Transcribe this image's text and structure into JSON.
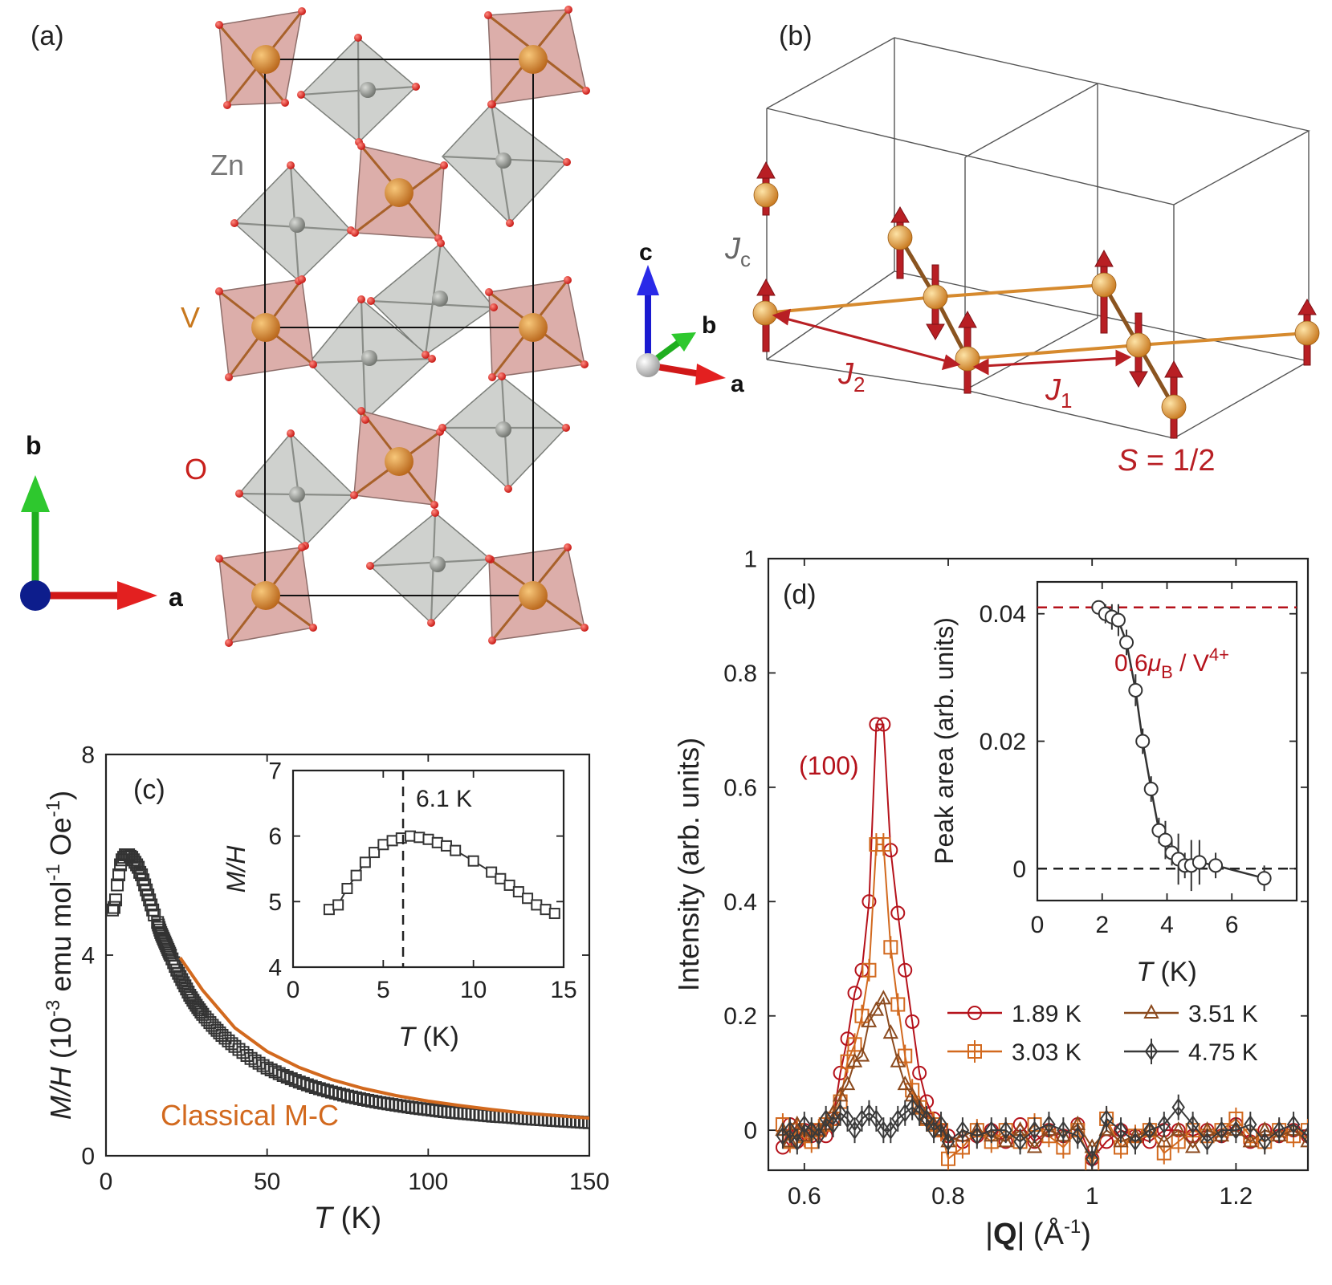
{
  "panel_a": {
    "label": "(a)",
    "atoms": {
      "zn": "Zn",
      "v": "V",
      "o": "O"
    },
    "axes": {
      "b": "b",
      "a": "a"
    },
    "colors": {
      "v_octa": "#d9a7a3",
      "zn_octa": "#c7c9c5",
      "v_atom": "#c8781e",
      "zn_atom": "#8a8d88",
      "o_atom": "#e3201b"
    }
  },
  "panel_b": {
    "label": "(b)",
    "axes": {
      "c": "c",
      "b": "b",
      "a": "a"
    },
    "jc_main": "J",
    "jc_sub": "c",
    "j1_main": "J",
    "j1_sub": "1",
    "j2_main": "J",
    "j2_sub": "2",
    "spin_label_s": "S",
    "spin_label_rest": " = 1/2",
    "colors": {
      "spin": "#b81f24",
      "bond": "#d68a2e",
      "atom": "#d98a1c",
      "cell": "#555555"
    }
  },
  "chart_data": [
    {
      "id": "c-main",
      "type": "scatter",
      "panel_label": "(c)",
      "xlabel_italic": "T",
      "xlabel_rest": " (K)",
      "ylabel": "M/H (10^-3 emu mol^-1 Oe^-1)",
      "ylabel_parts": {
        "mh": "M/H",
        "a": " (10",
        "e1": "-3",
        "b": " emu mol",
        "e2": "-1",
        "c": " Oe",
        "e3": "-1",
        "d": ")"
      },
      "xlim": [
        0,
        150
      ],
      "ylim": [
        0,
        8
      ],
      "xticks": [
        "0",
        "50",
        "100",
        "150"
      ],
      "yticks": [
        "0",
        "4",
        "8"
      ],
      "fit_label": "Classical M-C",
      "fit_color": "#d2691e",
      "data_color": "#333333",
      "fit_x": [
        23,
        30,
        40,
        50,
        60,
        70,
        80,
        90,
        100,
        110,
        120,
        130,
        140,
        150
      ],
      "fit_y": [
        3.95,
        3.3,
        2.55,
        2.08,
        1.76,
        1.52,
        1.34,
        1.2,
        1.09,
        1.0,
        0.92,
        0.85,
        0.8,
        0.75
      ],
      "points_x": [
        2,
        2.5,
        3,
        3.5,
        4,
        4.5,
        5,
        5.5,
        6,
        6.5,
        7,
        7.5,
        8,
        8.5,
        9,
        9.5,
        10,
        10.5,
        11,
        11.5,
        12,
        12.5,
        13,
        13.5,
        14,
        14.5,
        15,
        16,
        17,
        18,
        19,
        20,
        22,
        24,
        26,
        28,
        30,
        33,
        36,
        40,
        45,
        50,
        55,
        60,
        65,
        70,
        75,
        80,
        85,
        90,
        95,
        100,
        105,
        110,
        115,
        120,
        125,
        130,
        135,
        140,
        145,
        150
      ],
      "points_y": [
        4.9,
        4.95,
        5.1,
        5.4,
        5.6,
        5.8,
        5.9,
        5.95,
        6.0,
        6.0,
        6.0,
        5.97,
        5.95,
        5.9,
        5.85,
        5.8,
        5.75,
        5.65,
        5.6,
        5.5,
        5.4,
        5.3,
        5.2,
        5.1,
        5.0,
        4.9,
        4.8,
        4.65,
        4.45,
        4.3,
        4.15,
        4.0,
        3.7,
        3.45,
        3.2,
        3.0,
        2.82,
        2.6,
        2.4,
        2.18,
        1.94,
        1.75,
        1.6,
        1.47,
        1.36,
        1.27,
        1.19,
        1.12,
        1.06,
        1.01,
        0.96,
        0.92,
        0.88,
        0.85,
        0.82,
        0.79,
        0.77,
        0.74,
        0.72,
        0.7,
        0.68,
        0.66
      ]
    },
    {
      "id": "c-inset",
      "type": "line",
      "xlabel_italic": "T",
      "xlabel_rest": " (K)",
      "ylabel": "M/H",
      "xlim": [
        0,
        15
      ],
      "ylim": [
        4,
        7
      ],
      "xticks": [
        "0",
        "5",
        "10",
        "15"
      ],
      "yticks": [
        "4",
        "5",
        "6",
        "7"
      ],
      "vline_x": 6.1,
      "vline_label": "6.1 K",
      "x": [
        2,
        2.5,
        3,
        3.5,
        4,
        4.5,
        5,
        5.5,
        6,
        6.5,
        7,
        7.5,
        8,
        8.5,
        9,
        10,
        11,
        11.5,
        12,
        12.5,
        13,
        13.5,
        14,
        14.5
      ],
      "y": [
        4.88,
        4.95,
        5.2,
        5.4,
        5.6,
        5.75,
        5.87,
        5.93,
        5.97,
        6.0,
        5.98,
        5.95,
        5.9,
        5.85,
        5.78,
        5.62,
        5.45,
        5.35,
        5.25,
        5.15,
        5.05,
        4.95,
        4.88,
        4.82
      ]
    },
    {
      "id": "d-main",
      "type": "line",
      "panel_label": "(d)",
      "xlabel": "|Q| (Å^-1)",
      "xlabel_parts": {
        "bar1": "|",
        "q": "Q",
        "bar2": "|",
        "a": " (Å",
        "e": "-1",
        "b": ")"
      },
      "ylabel": "Intensity (arb. units)",
      "xlim": [
        0.55,
        1.3
      ],
      "ylim": [
        -0.07,
        1
      ],
      "xticks": [
        "0.6",
        "0.8",
        "1",
        "1.2"
      ],
      "yticks": [
        "0",
        "0.2",
        "0.4",
        "0.6",
        "0.8",
        "1"
      ],
      "peak_label": "(100)",
      "series": [
        {
          "name": "1.89 K",
          "color": "#b5121b",
          "marker": "circle",
          "x": [
            0.57,
            0.58,
            0.59,
            0.6,
            0.61,
            0.62,
            0.63,
            0.64,
            0.65,
            0.66,
            0.67,
            0.68,
            0.69,
            0.7,
            0.71,
            0.72,
            0.73,
            0.74,
            0.75,
            0.76,
            0.77,
            0.78,
            0.79,
            0.8,
            0.82,
            0.84,
            0.86,
            0.88,
            0.9,
            0.92,
            0.94,
            0.96,
            0.98,
            1.0,
            1.02,
            1.04,
            1.06,
            1.08,
            1.1,
            1.12,
            1.14,
            1.16,
            1.18,
            1.2,
            1.22,
            1.24,
            1.26,
            1.28,
            1.3
          ],
          "y": [
            -0.03,
            0.01,
            -0.02,
            0.0,
            -0.01,
            0.0,
            -0.01,
            0.02,
            0.1,
            0.16,
            0.24,
            0.28,
            0.4,
            0.71,
            0.71,
            0.49,
            0.38,
            0.28,
            0.19,
            0.1,
            0.05,
            0.02,
            0.0,
            -0.01,
            -0.02,
            -0.01,
            0.0,
            -0.02,
            0.01,
            -0.02,
            0.0,
            -0.01,
            0.01,
            -0.05,
            -0.02,
            0.0,
            -0.01,
            -0.02,
            0.0,
            0.0,
            -0.01,
            0.0,
            -0.01,
            0.01,
            -0.02,
            0.0,
            -0.01,
            0.0,
            -0.01
          ]
        },
        {
          "name": "3.03 K",
          "color": "#d2691e",
          "marker": "square-plus",
          "x": [
            0.57,
            0.58,
            0.59,
            0.6,
            0.61,
            0.62,
            0.63,
            0.64,
            0.65,
            0.66,
            0.67,
            0.68,
            0.69,
            0.7,
            0.71,
            0.72,
            0.73,
            0.74,
            0.75,
            0.76,
            0.77,
            0.78,
            0.79,
            0.8,
            0.82,
            0.84,
            0.86,
            0.88,
            0.9,
            0.92,
            0.94,
            0.96,
            0.98,
            1.0,
            1.02,
            1.04,
            1.06,
            1.08,
            1.1,
            1.12,
            1.14,
            1.16,
            1.18,
            1.2,
            1.22,
            1.24,
            1.26,
            1.28,
            1.3
          ],
          "y": [
            0.01,
            -0.02,
            0.0,
            -0.01,
            -0.02,
            0.0,
            0.01,
            0.02,
            0.05,
            0.12,
            0.15,
            0.2,
            0.28,
            0.5,
            0.5,
            0.32,
            0.22,
            0.13,
            0.07,
            0.04,
            0.02,
            0.01,
            0.0,
            -0.05,
            -0.03,
            0.0,
            -0.02,
            0.0,
            -0.02,
            0.01,
            -0.01,
            -0.03,
            0.0,
            -0.06,
            0.02,
            -0.03,
            -0.01,
            0.0,
            -0.04,
            -0.02,
            0.0,
            -0.01,
            0.0,
            0.02,
            -0.01,
            -0.02,
            0.0,
            -0.01,
            0.0
          ]
        },
        {
          "name": "3.51 K",
          "color": "#8b4a1e",
          "marker": "triangle",
          "x": [
            0.57,
            0.58,
            0.59,
            0.6,
            0.61,
            0.62,
            0.63,
            0.64,
            0.65,
            0.66,
            0.67,
            0.68,
            0.69,
            0.7,
            0.71,
            0.72,
            0.73,
            0.74,
            0.75,
            0.76,
            0.77,
            0.78,
            0.79,
            0.8,
            0.82,
            0.84,
            0.86,
            0.88,
            0.9,
            0.92,
            0.94,
            0.96,
            0.98,
            1.0,
            1.02,
            1.04,
            1.06,
            1.08,
            1.1,
            1.12,
            1.14,
            1.16,
            1.18,
            1.2,
            1.22,
            1.24,
            1.26,
            1.28,
            1.3
          ],
          "y": [
            0.0,
            -0.02,
            0.01,
            -0.01,
            0.0,
            0.0,
            0.01,
            0.03,
            0.06,
            0.08,
            0.12,
            0.13,
            0.19,
            0.21,
            0.23,
            0.17,
            0.12,
            0.08,
            0.06,
            0.04,
            0.02,
            0.01,
            0.0,
            -0.02,
            -0.01,
            0.0,
            -0.01,
            -0.02,
            0.0,
            -0.03,
            0.0,
            -0.01,
            0.01,
            -0.03,
            0.0,
            -0.02,
            -0.01,
            0.0,
            -0.02,
            0.0,
            -0.03,
            0.0,
            -0.01,
            0.0,
            -0.02,
            0.0,
            -0.01,
            0.0,
            -0.02
          ]
        },
        {
          "name": "4.75 K",
          "color": "#3a3a3a",
          "marker": "diamond",
          "x": [
            0.57,
            0.58,
            0.59,
            0.6,
            0.61,
            0.62,
            0.63,
            0.64,
            0.65,
            0.66,
            0.67,
            0.68,
            0.69,
            0.7,
            0.71,
            0.72,
            0.73,
            0.74,
            0.75,
            0.76,
            0.77,
            0.78,
            0.79,
            0.8,
            0.82,
            0.84,
            0.86,
            0.88,
            0.9,
            0.92,
            0.94,
            0.96,
            0.98,
            1.0,
            1.02,
            1.04,
            1.06,
            1.08,
            1.1,
            1.12,
            1.14,
            1.16,
            1.18,
            1.2,
            1.22,
            1.24,
            1.26,
            1.28,
            1.3
          ],
          "y": [
            -0.01,
            0.0,
            -0.02,
            0.01,
            0.0,
            -0.01,
            0.02,
            0.01,
            0.03,
            0.02,
            0.0,
            0.02,
            0.03,
            0.02,
            0.0,
            0.0,
            0.02,
            0.03,
            0.04,
            0.03,
            0.02,
            0.0,
            0.01,
            -0.02,
            0.0,
            -0.01,
            0.0,
            0.0,
            -0.02,
            0.0,
            0.01,
            0.0,
            -0.01,
            -0.05,
            0.02,
            0.0,
            -0.02,
            0.0,
            0.01,
            0.04,
            0.01,
            -0.02,
            0.0,
            0.0,
            0.01,
            -0.02,
            0.0,
            0.01,
            -0.01
          ]
        }
      ]
    },
    {
      "id": "d-inset",
      "type": "line",
      "xlabel_italic": "T",
      "xlabel_rest": " (K)",
      "ylabel": "Peak area (arb. units)",
      "xlim": [
        0,
        8
      ],
      "ylim": [
        -0.005,
        0.045
      ],
      "xticks": [
        "0",
        "2",
        "4",
        "6"
      ],
      "yticks": [
        "0",
        "0.02",
        "0.04"
      ],
      "hline_y": 0.041,
      "hline_color": "#b5121b",
      "hline_label_pre": "0.6",
      "hline_label_mu": "μ",
      "hline_label_sub": "B",
      "hline_label_mid": " / V",
      "hline_label_sup": "4+",
      "x": [
        1.89,
        2.1,
        2.3,
        2.5,
        2.75,
        3.03,
        3.25,
        3.51,
        3.75,
        3.95,
        4.15,
        4.35,
        4.55,
        4.75,
        5.0,
        5.5,
        7.0
      ],
      "y": [
        0.041,
        0.04,
        0.0395,
        0.039,
        0.0355,
        0.028,
        0.02,
        0.0125,
        0.006,
        0.0045,
        0.0025,
        0.0015,
        0.0005,
        0.0005,
        0.001,
        0.0005,
        -0.0015
      ],
      "err": [
        0.001,
        0.0015,
        0.002,
        0.0025,
        0.002,
        0.0025,
        0.002,
        0.002,
        0.002,
        0.003,
        0.002,
        0.004,
        0.002,
        0.004,
        0.0035,
        0.002,
        0.002
      ]
    }
  ]
}
